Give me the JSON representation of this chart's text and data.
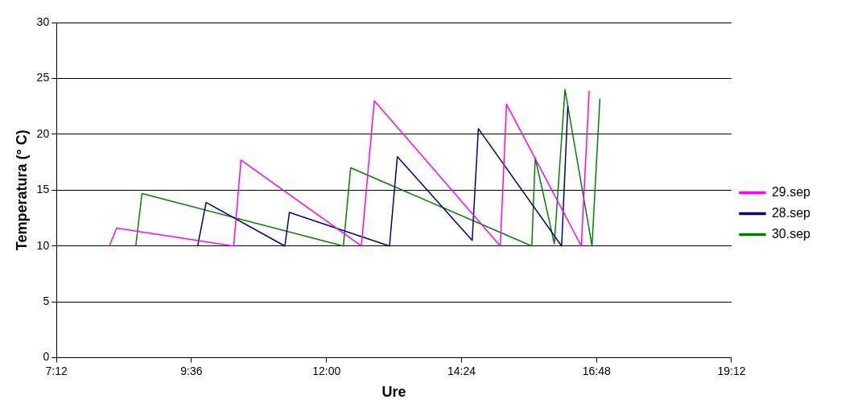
{
  "chart_data": {
    "type": "line",
    "xlabel": "Ure",
    "ylabel": "Temperatura (° C)",
    "xlim": [
      7.2,
      19.2
    ],
    "xticks": [
      {
        "value": 7.2,
        "label": "7:12"
      },
      {
        "value": 9.6,
        "label": "9:36"
      },
      {
        "value": 12,
        "label": "12:00"
      },
      {
        "value": 14.4,
        "label": "14:24"
      },
      {
        "value": 16.8,
        "label": "16:48"
      },
      {
        "value": 19.2,
        "label": "19:12"
      }
    ],
    "ylim": [
      0,
      30
    ],
    "yticks": [
      0,
      5,
      10,
      15,
      20,
      25,
      30
    ],
    "grid": "y",
    "legend": "right",
    "series": [
      {
        "name": "29.sep",
        "color": "#ff00ff",
        "x": [
          8.14,
          8.27,
          10.35,
          10.48,
          12.62,
          12.85,
          15.09,
          15.2,
          16.53,
          16.67
        ],
        "values": [
          10,
          11.6,
          10,
          17.7,
          10,
          23,
          10,
          22.7,
          10,
          23.9
        ]
      },
      {
        "name": "28.sep",
        "color": "#000080",
        "x": [
          9.71,
          9.86,
          11.26,
          11.34,
          13.12,
          13.26,
          14.59,
          14.7,
          16.18,
          16.29
        ],
        "values": [
          10,
          13.9,
          10,
          13,
          10,
          18,
          10.5,
          20.5,
          10,
          22.5
        ]
      },
      {
        "name": "30.sep",
        "color": "#008000",
        "x": [
          8.61,
          8.72,
          12.3,
          12.43,
          15.65,
          15.71,
          16.05,
          16.24,
          16.72,
          16.86
        ],
        "values": [
          10,
          14.7,
          10,
          17,
          10,
          17.9,
          10.2,
          24,
          10,
          23.2
        ]
      }
    ]
  }
}
